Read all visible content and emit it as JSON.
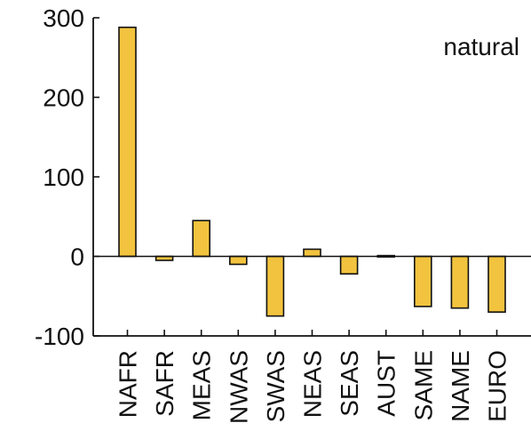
{
  "chart_data": {
    "type": "bar",
    "annotation": "natural",
    "categories": [
      "NAFR",
      "SAFR",
      "MEAS",
      "NWAS",
      "SWAS",
      "NEAS",
      "SEAS",
      "AUST",
      "SAME",
      "NAME",
      "EURO"
    ],
    "values": [
      288,
      -5,
      45,
      -10,
      -75,
      9,
      -22,
      1,
      -63,
      -65,
      -70
    ],
    "ylim": [
      -100,
      300
    ],
    "yticks": [
      -100,
      0,
      100,
      200,
      300
    ],
    "ytick_labels": [
      "-100",
      "0",
      "100",
      "200",
      "300"
    ],
    "xlabel": "",
    "ylabel": "",
    "title": "",
    "grid": false,
    "zero_line": true,
    "colors": {
      "bar_fill": "#F2C33E",
      "bar_stroke": "#111111",
      "axis": "#111111",
      "text": "#111111"
    }
  }
}
